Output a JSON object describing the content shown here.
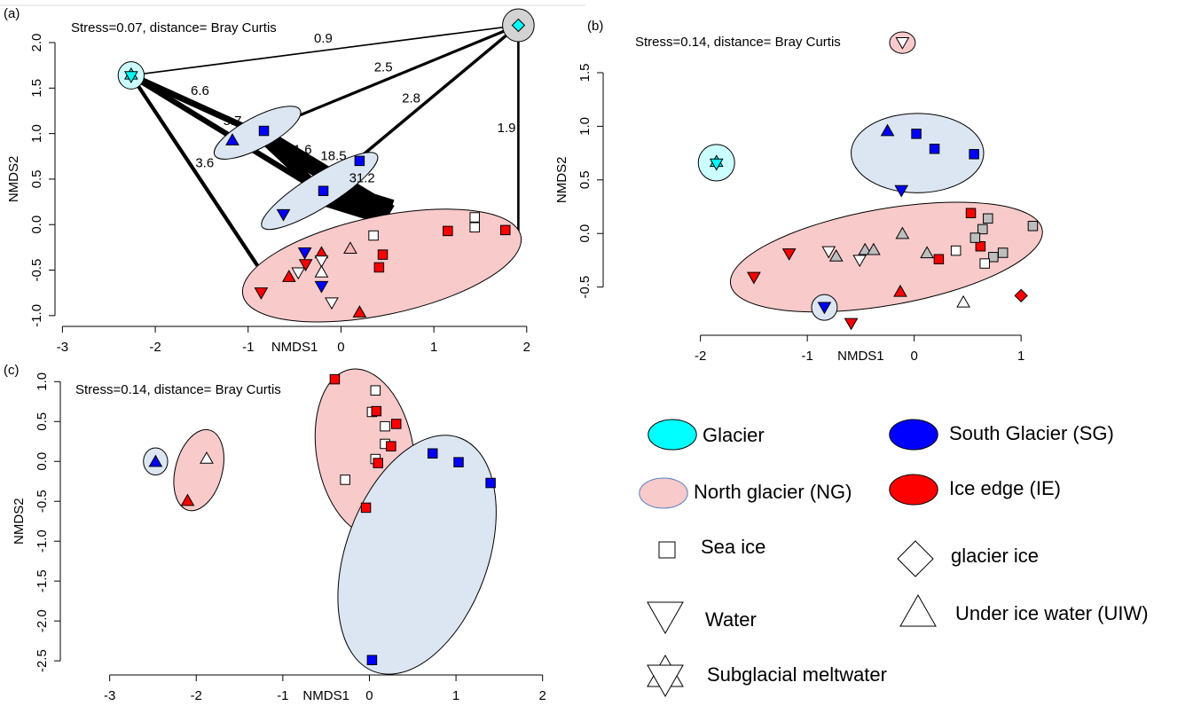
{
  "chart_data": [
    {
      "type": "scatter",
      "panel_label": "(a)",
      "annotation": "Stress=0.07, distance= Bray Curtis",
      "x_label": "NMDS1",
      "y_label": "NMDS2",
      "xlim": [
        -3.08,
        2.04
      ],
      "ylim": [
        -1.06,
        2.39
      ],
      "xticks": [
        -3,
        -2,
        -1,
        0,
        1,
        2
      ],
      "yticks": [
        {
          "value": -1,
          "label": "-1.0"
        },
        -0.5,
        {
          "value": 0,
          "label": "0.0"
        },
        0.5,
        {
          "value": 1,
          "label": "1.0"
        },
        1.5,
        {
          "value": 2,
          "label": "2.0"
        }
      ],
      "edges": [
        {
          "x": [
            -2.26,
            1.91
          ],
          "y": [
            1.64,
            2.19
          ],
          "value": 0.9
        },
        {
          "x": [
            -2.26,
            -0.9
          ],
          "y": [
            1.64,
            1.01
          ],
          "value": 6.6
        },
        {
          "x": [
            -2.26,
            -0.23
          ],
          "y": [
            1.64,
            0.37
          ],
          "value": 5.7
        },
        {
          "x": [
            -2.26,
            -0.9
          ],
          "y": [
            1.64,
            -0.45
          ],
          "value": 3.6
        },
        {
          "x": [
            1.91,
            -0.9
          ],
          "y": [
            2.19,
            1.01
          ],
          "value": 2.5
        },
        {
          "x": [
            1.91,
            -0.23
          ],
          "y": [
            2.19,
            0.37
          ],
          "value": 2.8
        },
        {
          "x": [
            1.91,
            1.91
          ],
          "y": [
            2.19,
            -0.08
          ],
          "value": 1.9
        },
        {
          "x": [
            -0.9,
            0.53
          ],
          "y": [
            1.01,
            0.13
          ],
          "value": 18.5
        },
        {
          "x": [
            -0.9,
            -0.23
          ],
          "y": [
            1.01,
            0.37
          ],
          "value": 11.6
        },
        {
          "x": [
            -0.23,
            0.53
          ],
          "y": [
            0.37,
            0.13
          ],
          "value": 31.2
        }
      ],
      "ellipses": [
        {
          "cx": -2.26,
          "cy": 1.64,
          "rx": 0.14,
          "ry": 0.15,
          "angle": 0,
          "color": "#ccffff"
        },
        {
          "cx": 1.91,
          "cy": 2.19,
          "rx": 0.17,
          "ry": 0.18,
          "angle": 0,
          "color": "#d3d3d3"
        },
        {
          "cx": -0.9,
          "cy": 1.01,
          "rx": 0.52,
          "ry": 0.17,
          "angle": -28,
          "color": "#dce6f2"
        },
        {
          "cx": -0.23,
          "cy": 0.37,
          "rx": 0.73,
          "ry": 0.18,
          "angle": -32,
          "color": "#dce6f2"
        },
        {
          "cx": 0.44,
          "cy": -0.45,
          "rx": 1.53,
          "ry": 0.54,
          "angle": -12,
          "color": "#f9caca"
        }
      ],
      "series": [
        {
          "marker": "star",
          "color": "#00ffff",
          "x": [
            -2.26
          ],
          "values": [
            1.64
          ]
        },
        {
          "marker": "diamond",
          "color": "#00ffff",
          "x": [
            1.91
          ],
          "values": [
            2.19
          ]
        },
        {
          "marker": "up",
          "color": "#0000ff",
          "x": [
            -1.17
          ],
          "values": [
            0.93
          ]
        },
        {
          "marker": "square",
          "color": "#0000ff",
          "x": [
            -0.83,
            0.2,
            -0.19
          ],
          "values": [
            1.03,
            0.7,
            0.37
          ]
        },
        {
          "marker": "down",
          "color": "#0000ff",
          "x": [
            -0.62,
            -0.39,
            -0.21
          ],
          "values": [
            0.11,
            -0.31,
            -0.68
          ]
        },
        {
          "marker": "square",
          "color": "#ffffff",
          "x": [
            1.44,
            1.44,
            0.35
          ],
          "values": [
            0.08,
            -0.03,
            -0.12
          ]
        },
        {
          "marker": "square",
          "color": "#ff0000",
          "x": [
            1.15,
            1.77,
            0.45,
            0.41
          ],
          "values": [
            -0.07,
            -0.06,
            -0.33,
            -0.47
          ]
        },
        {
          "marker": "up",
          "color": "#f4b6b6",
          "x": [
            0.1
          ],
          "values": [
            -0.26
          ]
        },
        {
          "marker": "down",
          "color": "#ff0000",
          "x": [
            -0.86,
            -0.38
          ],
          "values": [
            -0.75,
            -0.44
          ]
        },
        {
          "marker": "up",
          "color": "#ff0000",
          "x": [
            -0.56,
            -0.21,
            0.2
          ],
          "values": [
            -0.57,
            -0.31,
            -0.96
          ]
        },
        {
          "marker": "down",
          "color": "#ffffff",
          "x": [
            -0.46,
            -0.1,
            -0.21
          ],
          "values": [
            -0.53,
            -0.86,
            -0.4
          ]
        },
        {
          "marker": "up",
          "color": "#ffffff",
          "x": [
            -0.21
          ],
          "values": [
            -0.52
          ]
        }
      ]
    },
    {
      "type": "scatter",
      "panel_label": "(b)",
      "annotation": "Stress=0.14, distance= Bray Curtis",
      "x_label": "NMDS1",
      "y_label": "NMDS2",
      "xlim": [
        -2.91,
        2.65
      ],
      "ylim": [
        -0.9,
        1.93
      ],
      "xticks": [
        -2,
        -1,
        0,
        1
      ],
      "yticks": [
        -0.5,
        {
          "value": 0,
          "label": "0.0"
        },
        0.5,
        {
          "value": 1,
          "label": "1.0"
        },
        1.5
      ],
      "edges": [],
      "ellipses": [
        {
          "cx": -1.85,
          "cy": 0.66,
          "rx": 0.17,
          "ry": 0.17,
          "angle": 0,
          "color": "#ccffff"
        },
        {
          "cx": -0.11,
          "cy": 1.78,
          "rx": 0.12,
          "ry": 0.1,
          "angle": 0,
          "color": "#f9caca"
        },
        {
          "cx": 0.03,
          "cy": 0.75,
          "rx": 0.62,
          "ry": 0.37,
          "angle": 0,
          "color": "#dce6f2"
        },
        {
          "cx": -0.26,
          "cy": -0.22,
          "rx": 1.48,
          "ry": 0.45,
          "angle": -10,
          "color": "#f9caca"
        },
        {
          "cx": -0.84,
          "cy": -0.69,
          "rx": 0.12,
          "ry": 0.12,
          "angle": 0,
          "color": "#dce6f2"
        }
      ],
      "series": [
        {
          "marker": "star",
          "color": "#00ffff",
          "x": [
            -1.85
          ],
          "values": [
            0.66
          ]
        },
        {
          "marker": "down",
          "color": "#ffffff",
          "x": [
            -0.11,
            -0.8,
            -0.51
          ],
          "values": [
            1.78,
            -0.17,
            -0.25
          ]
        },
        {
          "marker": "up",
          "color": "#0000ff",
          "x": [
            -0.25
          ],
          "values": [
            0.96
          ]
        },
        {
          "marker": "square",
          "color": "#0000ff",
          "x": [
            0.02,
            0.19,
            0.56
          ],
          "values": [
            0.93,
            0.79,
            0.74
          ]
        },
        {
          "marker": "down",
          "color": "#0000ff",
          "x": [
            -0.12,
            -0.84
          ],
          "values": [
            0.4,
            -0.69
          ]
        },
        {
          "marker": "down",
          "color": "#ff0000",
          "x": [
            -1.5,
            -1.17,
            -0.59
          ],
          "values": [
            -0.41,
            -0.19,
            -0.84
          ]
        },
        {
          "marker": "up",
          "color": "#bebebe",
          "x": [
            -0.73,
            -0.46,
            -0.38,
            -0.11,
            0.12
          ],
          "values": [
            -0.21,
            -0.15,
            -0.15,
            0.0,
            -0.18
          ]
        },
        {
          "marker": "up",
          "color": "#ffffff",
          "x": [
            0.46
          ],
          "values": [
            -0.64
          ]
        },
        {
          "marker": "up",
          "color": "#ff0000",
          "x": [
            -0.13
          ],
          "values": [
            -0.54
          ]
        },
        {
          "marker": "square",
          "color": "#ff0000",
          "x": [
            0.23,
            0.53,
            0.62
          ],
          "values": [
            -0.24,
            0.19,
            -0.12
          ]
        },
        {
          "marker": "square",
          "color": "#bebebe",
          "x": [
            0.69,
            0.64,
            0.57,
            0.74,
            0.83,
            1.11
          ],
          "values": [
            0.14,
            0.04,
            -0.04,
            -0.22,
            -0.18,
            0.07
          ]
        },
        {
          "marker": "square",
          "color": "#ffffff",
          "x": [
            0.39,
            0.66
          ],
          "values": [
            -0.16,
            -0.28
          ]
        },
        {
          "marker": "diamond",
          "color": "#ff0000",
          "x": [
            1.0
          ],
          "values": [
            -0.58
          ]
        }
      ]
    },
    {
      "type": "scatter",
      "panel_label": "(c)",
      "annotation": "Stress=0.14, distance= Bray Curtis",
      "x_label": "NMDS1",
      "y_label": "NMDS2",
      "xlim": [
        -3.57,
        2.29
      ],
      "ylim": [
        -2.61,
        1.17
      ],
      "xticks": [
        -3,
        -2,
        -1,
        0,
        1,
        2
      ],
      "yticks": [
        -2.5,
        {
          "value": -2,
          "label": "-2.0"
        },
        -1.5,
        {
          "value": -1,
          "label": "-1.0"
        },
        -0.5,
        {
          "value": 0,
          "label": "0.0"
        },
        0.5,
        {
          "value": 1,
          "label": "1.0"
        }
      ],
      "edges": [],
      "ellipses": [
        {
          "cx": -2.47,
          "cy": 0.0,
          "rx": 0.14,
          "ry": 0.17,
          "angle": 0,
          "color": "#dce6f2"
        },
        {
          "cx": -1.97,
          "cy": -0.11,
          "rx": 0.27,
          "ry": 0.52,
          "angle": 15,
          "color": "#f9caca"
        },
        {
          "cx": -0.05,
          "cy": 0.11,
          "rx": 0.56,
          "ry": 1.06,
          "angle": -10,
          "color": "#f9caca"
        },
        {
          "cx": 0.55,
          "cy": -1.17,
          "rx": 0.82,
          "ry": 1.56,
          "angle": 20,
          "color": "#dce6f2"
        }
      ],
      "series": [
        {
          "marker": "up",
          "color": "#0000ff",
          "x": [
            -2.47
          ],
          "values": [
            0.0
          ]
        },
        {
          "marker": "up",
          "color": "#ffffff",
          "x": [
            -1.88
          ],
          "values": [
            0.04
          ]
        },
        {
          "marker": "up",
          "color": "#ff0000",
          "x": [
            -2.1
          ],
          "values": [
            -0.49
          ]
        },
        {
          "marker": "square",
          "color": "#ffffff",
          "x": [
            0.07,
            0.03,
            0.18,
            0.18,
            0.07,
            -0.28
          ],
          "values": [
            0.89,
            0.62,
            0.44,
            0.22,
            0.03,
            -0.23
          ]
        },
        {
          "marker": "square",
          "color": "#ff0000",
          "x": [
            -0.4,
            0.08,
            0.31,
            0.25,
            0.1,
            -0.04
          ],
          "values": [
            1.03,
            0.63,
            0.47,
            0.19,
            -0.02,
            -0.58
          ]
        },
        {
          "marker": "square",
          "color": "#0000ff",
          "x": [
            0.73,
            1.03,
            1.4,
            0.03
          ],
          "values": [
            0.1,
            -0.01,
            -0.27,
            -2.49
          ]
        }
      ]
    }
  ],
  "legend": {
    "items": [
      {
        "label": "Glacier",
        "marker": "ellipse",
        "color": "#00ffff"
      },
      {
        "label": "South Glacier (SG)",
        "marker": "ellipse",
        "color": "#0000ff"
      },
      {
        "label": "North glacier (NG)",
        "marker": "ellipse",
        "color": "#f9caca"
      },
      {
        "label": "Ice edge (IE)",
        "marker": "ellipse",
        "color": "#ff0000"
      },
      {
        "label": "Sea ice",
        "marker": "square",
        "color": "#ffffff"
      },
      {
        "label": "glacier ice",
        "marker": "diamond",
        "color": "#ffffff"
      },
      {
        "label": "Water",
        "marker": "down",
        "color": "#ffffff"
      },
      {
        "label": "Under ice water (UIW)",
        "marker": "up",
        "color": "#ffffff"
      },
      {
        "label": "Subglacial meltwater",
        "marker": "star",
        "color": "#ffffff"
      }
    ]
  }
}
